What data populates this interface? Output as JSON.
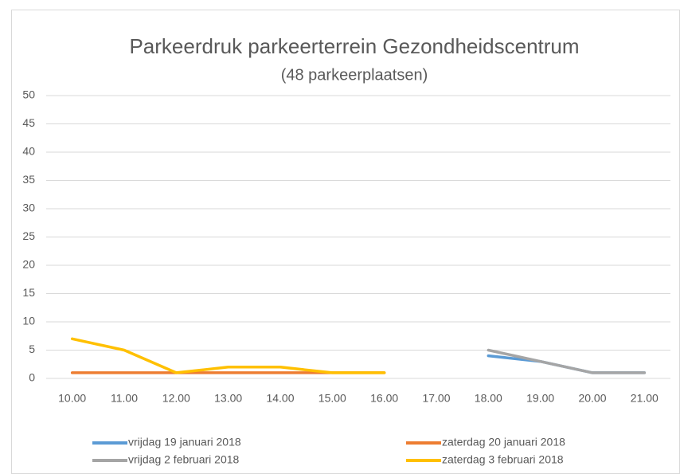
{
  "chart_data": {
    "type": "line",
    "title": "Parkeerdruk parkeerterrein Gezondheidscentrum",
    "subtitle": "(48 parkeerplaatsen)",
    "categories": [
      "10.00",
      "11.00",
      "12.00",
      "13.00",
      "14.00",
      "15.00",
      "16.00",
      "17.00",
      "18.00",
      "19.00",
      "20.00",
      "21.00"
    ],
    "series": [
      {
        "name": "vrijdag 19 januari 2018",
        "color": "#5b9bd5",
        "values": [
          null,
          null,
          null,
          null,
          null,
          null,
          null,
          null,
          4,
          3,
          1,
          1
        ]
      },
      {
        "name": "zaterdag 20 januari 2018",
        "color": "#ed7d31",
        "values": [
          1,
          1,
          1,
          1,
          1,
          1,
          1,
          null,
          null,
          null,
          null,
          null
        ]
      },
      {
        "name": "vrijdag 2 februari 2018",
        "color": "#a5a5a5",
        "values": [
          null,
          null,
          null,
          null,
          null,
          null,
          null,
          null,
          5,
          3,
          1,
          1
        ]
      },
      {
        "name": "zaterdag 3 februari 2018",
        "color": "#ffc000",
        "values": [
          7,
          5,
          1,
          2,
          2,
          1,
          1,
          null,
          null,
          null,
          null,
          null
        ]
      }
    ],
    "ylim": [
      0,
      50
    ],
    "yticks": [
      0,
      5,
      10,
      15,
      20,
      25,
      30,
      35,
      40,
      45,
      50
    ],
    "grid": true,
    "legend": "bottom"
  }
}
